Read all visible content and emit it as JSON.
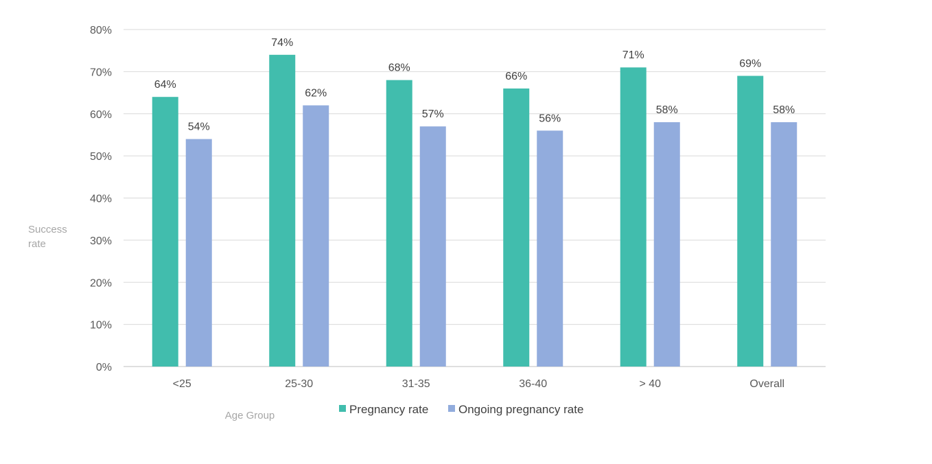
{
  "chart_data": {
    "type": "bar",
    "title": "",
    "xlabel": "Age Group",
    "ylabel": "Success rate",
    "categories": [
      "<25",
      "25-30",
      "31-35",
      "36-40",
      "> 40",
      "Overall"
    ],
    "series": [
      {
        "name": "Pregnancy rate",
        "color": "#41bdad",
        "values": [
          64,
          74,
          68,
          66,
          71,
          69
        ]
      },
      {
        "name": "Ongoing pregnancy rate",
        "color": "#92acdd",
        "values": [
          54,
          62,
          57,
          56,
          58,
          58
        ]
      }
    ],
    "ylim": [
      0,
      80
    ],
    "yticks": [
      "0%",
      "10%",
      "20%",
      "30%",
      "40%",
      "50%",
      "60%",
      "70%",
      "80%"
    ],
    "data_labels": [
      [
        "64%",
        "74%",
        "68%",
        "66%",
        "71%",
        "69%"
      ],
      [
        "54%",
        "62%",
        "57%",
        "56%",
        "58%",
        "58%"
      ]
    ],
    "grid": true,
    "legend_position": "bottom"
  }
}
